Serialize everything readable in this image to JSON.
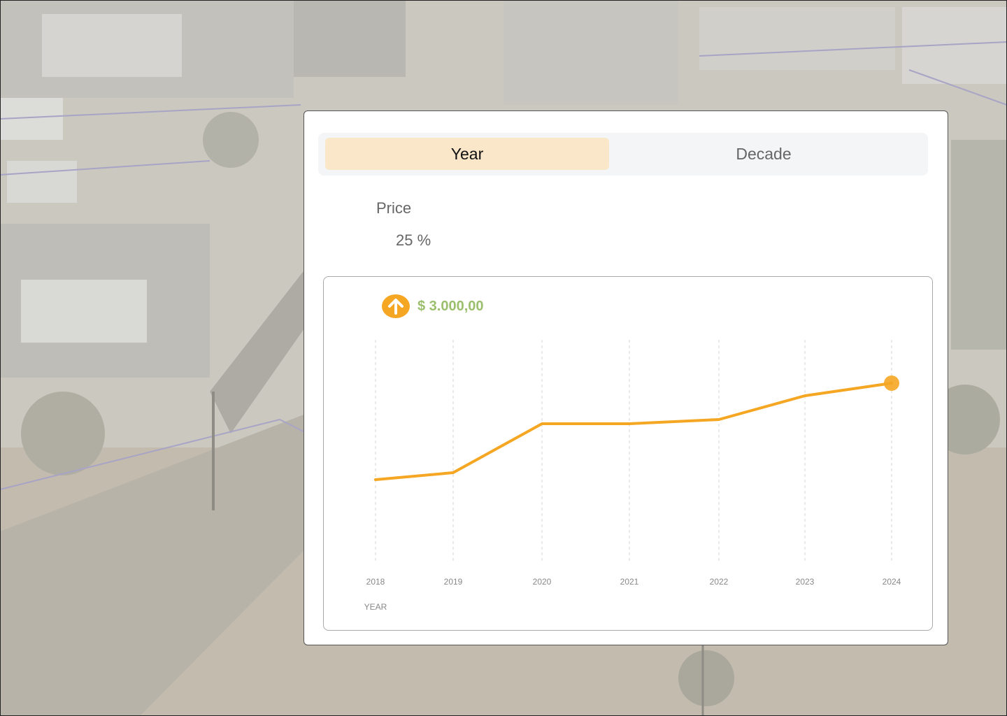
{
  "tabs": [
    {
      "label": "Year",
      "selected": true
    },
    {
      "label": "Decade",
      "selected": false
    }
  ],
  "metric": {
    "label": "Price",
    "value": "25 %"
  },
  "summary": {
    "direction": "up",
    "amount": "$ 3.000,00"
  },
  "colors": {
    "accent": "#f5a623",
    "amount_text": "#9cbf6d",
    "selected_tab": "#fae7c9"
  },
  "icons": {
    "trend": "arrow-up-icon"
  },
  "chart_data": {
    "type": "line",
    "xlabel": "YEAR",
    "ylabel": "",
    "x": [
      "2018",
      "2019",
      "2020",
      "2021",
      "2022",
      "2023",
      "2024"
    ],
    "series": [
      {
        "values": [
          1000,
          1050,
          1400,
          1400,
          1430,
          1600,
          1690
        ]
      }
    ],
    "ylim": [
      400,
      2000
    ],
    "grid": "vertical dashed",
    "highlight_last_point": true
  }
}
